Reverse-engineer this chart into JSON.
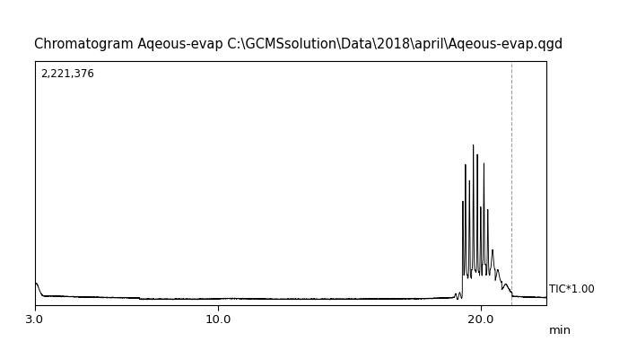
{
  "title": "Chromatogram Aqeous-evap C:\\GCMSsolution\\Data\\2018\\april\\Aqeous-evap.qgd",
  "xlabel": "min",
  "ylabel_right": "TIC*1.00",
  "y_label_top_left": "2,221,376",
  "x_min": 3.0,
  "x_max": 22.5,
  "x_ticks": [
    3.0,
    10.0,
    20.0
  ],
  "background_color": "#ffffff",
  "line_color": "#000000",
  "title_fontsize": 10.5,
  "tick_fontsize": 9.5,
  "dashed_line_x": 21.15
}
